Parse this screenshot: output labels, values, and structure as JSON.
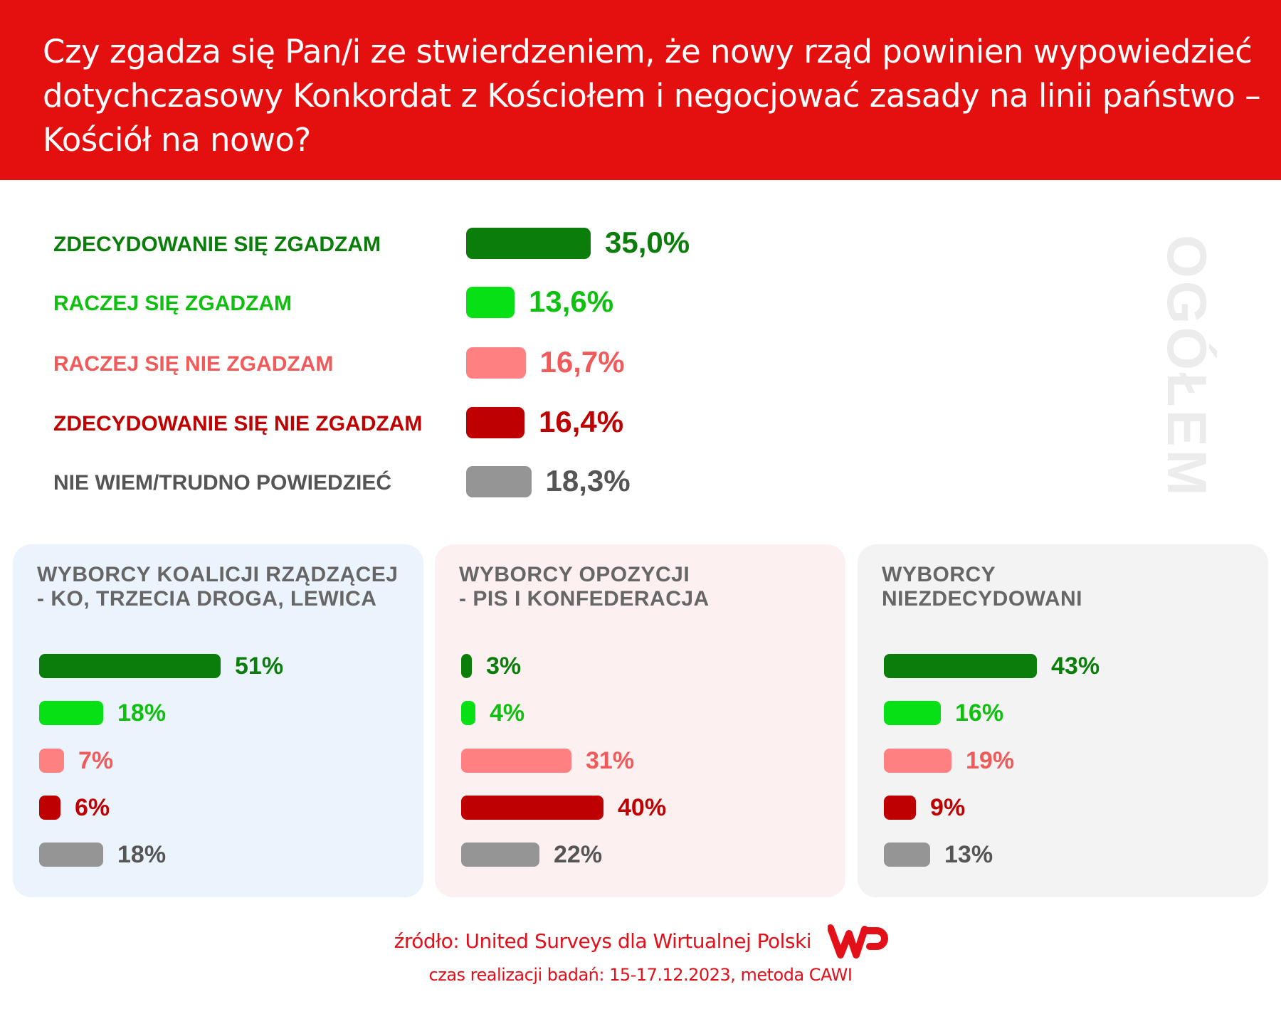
{
  "header": {
    "title": "Czy zgadza się Pan/i ze stwierdzeniem, że nowy rząd powinien wypowiedzieć dotychczasowy Konkordat z Kościołem i negocjować zasady na linii państwo – Kościół na nowo?"
  },
  "side_label": "OGÓŁEM",
  "chart_data": [
    {
      "type": "bar",
      "title": "OGÓŁEM",
      "orientation": "horizontal",
      "categories": [
        "ZDECYDOWANIE SIĘ ZGADZAM",
        "RACZEJ SIĘ ZGADZAM",
        "RACZEJ SIĘ NIE ZGADZAM",
        "ZDECYDOWANIE SIĘ NIE ZGADZAM",
        "NIE WIEM/TRUDNO POWIEDZIEĆ"
      ],
      "values": [
        35.0,
        13.6,
        16.7,
        16.4,
        18.3
      ],
      "labels": [
        "35,0%",
        "13,6%",
        "16,7%",
        "16,4%",
        "18,3%"
      ],
      "colors": [
        "#0a7d0a",
        "#06e014",
        "#ff8080",
        "#bf0000",
        "#959595"
      ],
      "label_colors": [
        "#0a7d0a",
        "#10c010",
        "#f05a5a",
        "#bf0000",
        "#555555"
      ]
    },
    {
      "type": "bar",
      "title_lines": [
        "WYBORCY KOALICJI RZĄDZĄCEJ",
        "- KO, TRZECIA DROGA, LEWICA"
      ],
      "values": [
        51,
        18,
        7,
        6,
        18
      ],
      "labels": [
        "51%",
        "18%",
        "7%",
        "6%",
        "18%"
      ],
      "background": "#ebf3fc"
    },
    {
      "type": "bar",
      "title_lines": [
        "WYBORCY OPOZYCJI",
        "- PIS I KONFEDERACJA"
      ],
      "values": [
        3,
        4,
        31,
        40,
        22
      ],
      "labels": [
        "3%",
        "4%",
        "31%",
        "40%",
        "22%"
      ],
      "background": "#fdf0f0"
    },
    {
      "type": "bar",
      "title_lines": [
        "WYBORCY",
        "NIEZDECYDOWANI"
      ],
      "values": [
        43,
        16,
        19,
        9,
        13
      ],
      "labels": [
        "43%",
        "16%",
        "19%",
        "9%",
        "13%"
      ],
      "background": "#f3f3f3"
    }
  ],
  "footer": {
    "source": "źródło: United Surveys dla Wirtualnej Polski",
    "details": "czas realizacji badań: 15-17.12.2023, metoda CAWI",
    "logo_text": "WP"
  }
}
